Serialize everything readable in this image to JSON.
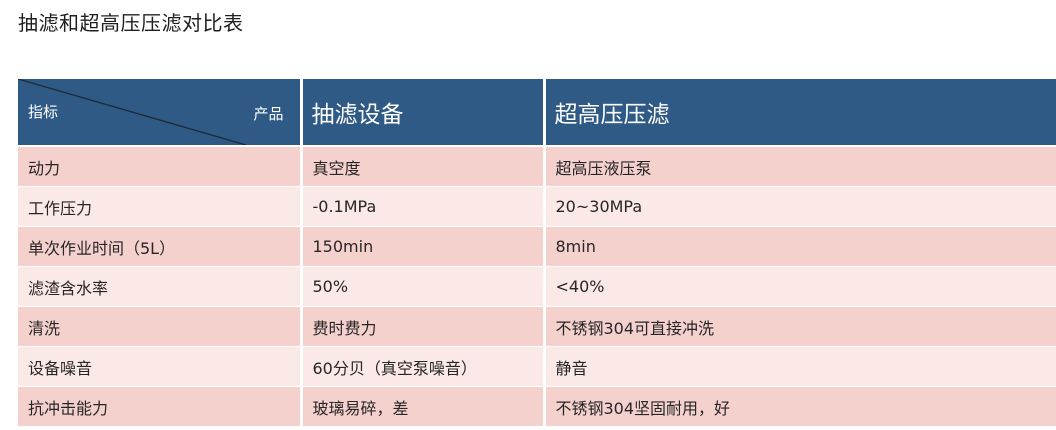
{
  "title": "抽滤和超高压压滤对比表",
  "header": {
    "corner_indicator": "指标",
    "corner_product": "产品",
    "product_a": "抽滤设备",
    "product_b": "超高压压滤"
  },
  "rows": [
    {
      "indicator": "动力",
      "a": "真空度",
      "b": "超高压液压泵"
    },
    {
      "indicator": "工作压力",
      "a": "-0.1MPa",
      "b": "20~30MPa"
    },
    {
      "indicator": "单次作业时间（5L）",
      "a": "150min",
      "b": "8min"
    },
    {
      "indicator": "滤渣含水率",
      "a": "50%",
      "b": "<40%"
    },
    {
      "indicator": "清洗",
      "a": "费时费力",
      "b": "不锈钢304可直接冲洗"
    },
    {
      "indicator": "设备噪音",
      "a": "60分贝（真空泵噪音）",
      "b": "静音"
    },
    {
      "indicator": "抗冲击能力",
      "a": "玻璃易碎，差",
      "b": "不锈钢304坚固耐用，好"
    }
  ],
  "colors": {
    "header_bg": "#2f5a85",
    "row_dark": "#f5d1cd",
    "row_light": "#fae9e7"
  }
}
